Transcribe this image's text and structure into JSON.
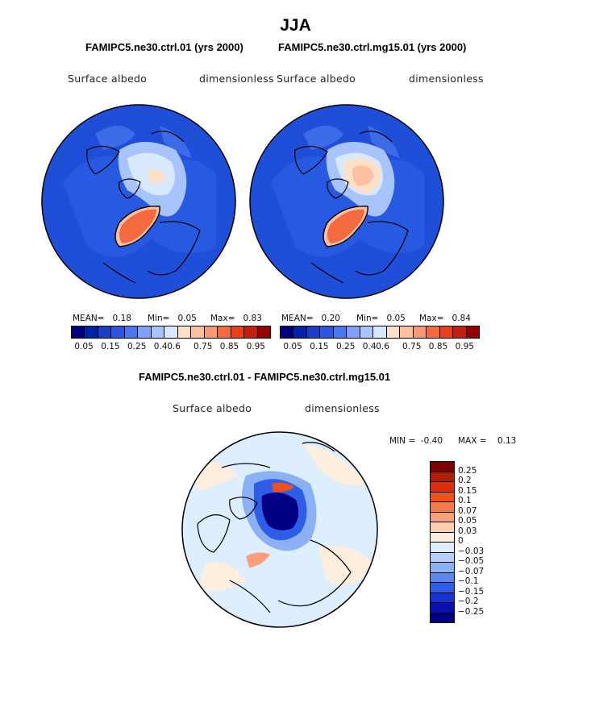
{
  "title": "JJA",
  "panels": [
    {
      "subtitle": "FAMIPC5.ne30.ctrl.01 (yrs 2000)",
      "left_label": "Surface albedo",
      "right_label": "dimensionless",
      "mean_label": "MEAN=",
      "mean_value": "0.18",
      "min_label": "Min=",
      "min_value": "0.05",
      "max_label": "Max=",
      "max_value": "0.83"
    },
    {
      "subtitle": "FAMIPC5.ne30.ctrl.mg15.01 (yrs 2000)",
      "left_label": "Surface albedo",
      "right_label": "dimensionless",
      "mean_label": "MEAN=",
      "mean_value": "0.20",
      "min_label": "Min=",
      "min_value": "0.05",
      "max_label": "Max=",
      "max_value": "0.84"
    }
  ],
  "colorbar_top": {
    "colors": [
      "#00007f",
      "#0022a8",
      "#1a3ec8",
      "#2b55e0",
      "#4a78f0",
      "#7fa0f8",
      "#a8c4fc",
      "#d8e8ff",
      "#fde0c8",
      "#fcbfa0",
      "#f89878",
      "#f46a40",
      "#e8401c",
      "#c41e10",
      "#960000"
    ],
    "ticks": [
      "0.05",
      "0.15",
      "0.25",
      "0.4",
      "0.6",
      "0.75",
      "0.85",
      "0.95"
    ]
  },
  "diff": {
    "subtitle": "FAMIPC5.ne30.ctrl.01 - FAMIPC5.ne30.ctrl.mg15.01",
    "left_label": "Surface albedo",
    "right_label": "dimensionless",
    "min_label": "MIN =",
    "min_value": "-0.40",
    "max_label": "MAX =",
    "max_value": "0.13",
    "colors": [
      "#7f0000",
      "#b01e00",
      "#d83010",
      "#f0501e",
      "#f47a4a",
      "#f8a07a",
      "#fccfb0",
      "#fdeede",
      "#ddeeff",
      "#b4d0fa",
      "#8cb0f4",
      "#5a88ec",
      "#2e5ee8",
      "#1634d4",
      "#0810b0",
      "#000084"
    ],
    "ticks": [
      "0.25",
      "0.2",
      "0.15",
      "0.1",
      "0.07",
      "0.05",
      "0.03",
      "0",
      "−0.03",
      "−0.05",
      "−0.07",
      "−0.1",
      "−0.15",
      "−0.2",
      "−0.25"
    ]
  }
}
